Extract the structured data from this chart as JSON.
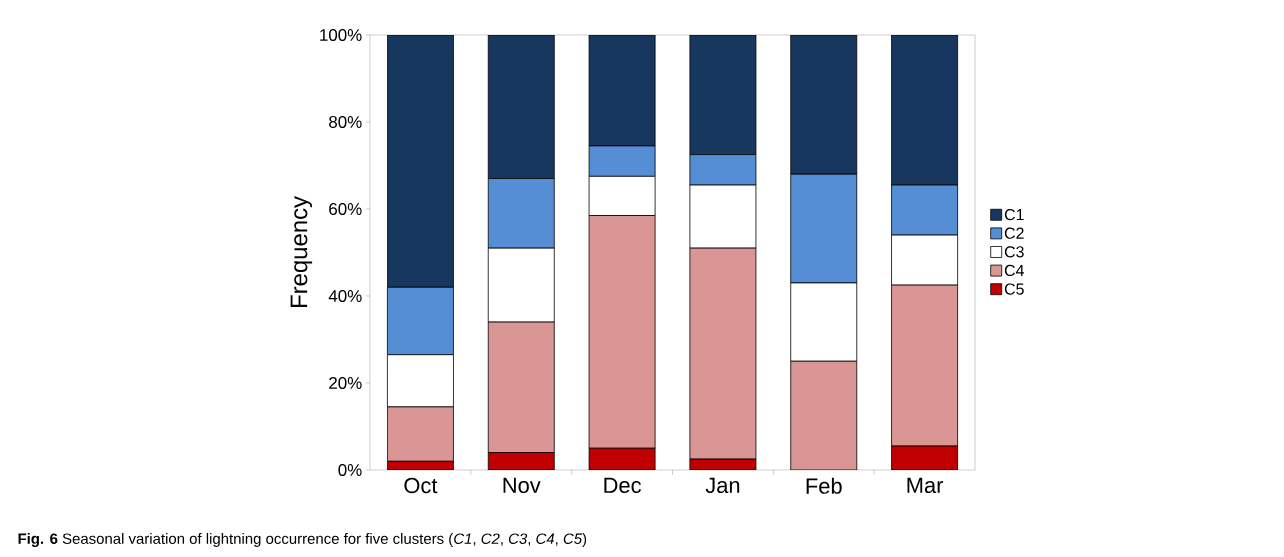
{
  "chart_data": {
    "type": "bar",
    "stacked": true,
    "ylabel": "Frequency",
    "categories": [
      "Oct",
      "Nov",
      "Dec",
      "Jan",
      "Feb",
      "Mar"
    ],
    "series": [
      {
        "name": "C5",
        "color": "#c00000",
        "values": [
          2,
          4,
          5,
          2.5,
          0,
          5.5
        ]
      },
      {
        "name": "C4",
        "color": "#d99694",
        "values": [
          12.5,
          30,
          53.5,
          48.5,
          25,
          37
        ]
      },
      {
        "name": "C3",
        "color": "#ffffff",
        "values": [
          12,
          17,
          9,
          14.5,
          18,
          11.5
        ]
      },
      {
        "name": "C2",
        "color": "#558ed5",
        "values": [
          15.5,
          16,
          7,
          7,
          25,
          11.5
        ]
      },
      {
        "name": "C1",
        "color": "#17375e",
        "values": [
          58,
          33,
          25.5,
          27.5,
          32,
          34.5
        ]
      }
    ],
    "ylim": [
      0,
      100
    ],
    "yticks": [
      {
        "value": 0,
        "label": "0%"
      },
      {
        "value": 20,
        "label": "20%"
      },
      {
        "value": 40,
        "label": "40%"
      },
      {
        "value": 60,
        "label": "60%"
      },
      {
        "value": 80,
        "label": "80%"
      },
      {
        "value": 100,
        "label": "100%"
      }
    ],
    "legend": "right",
    "annotations": [
      "**Fig. 6** Seasonal variation of lightning occurrence for five clusters (*C1*, *C2*, *C3*, *C4*, *C5*)"
    ]
  }
}
